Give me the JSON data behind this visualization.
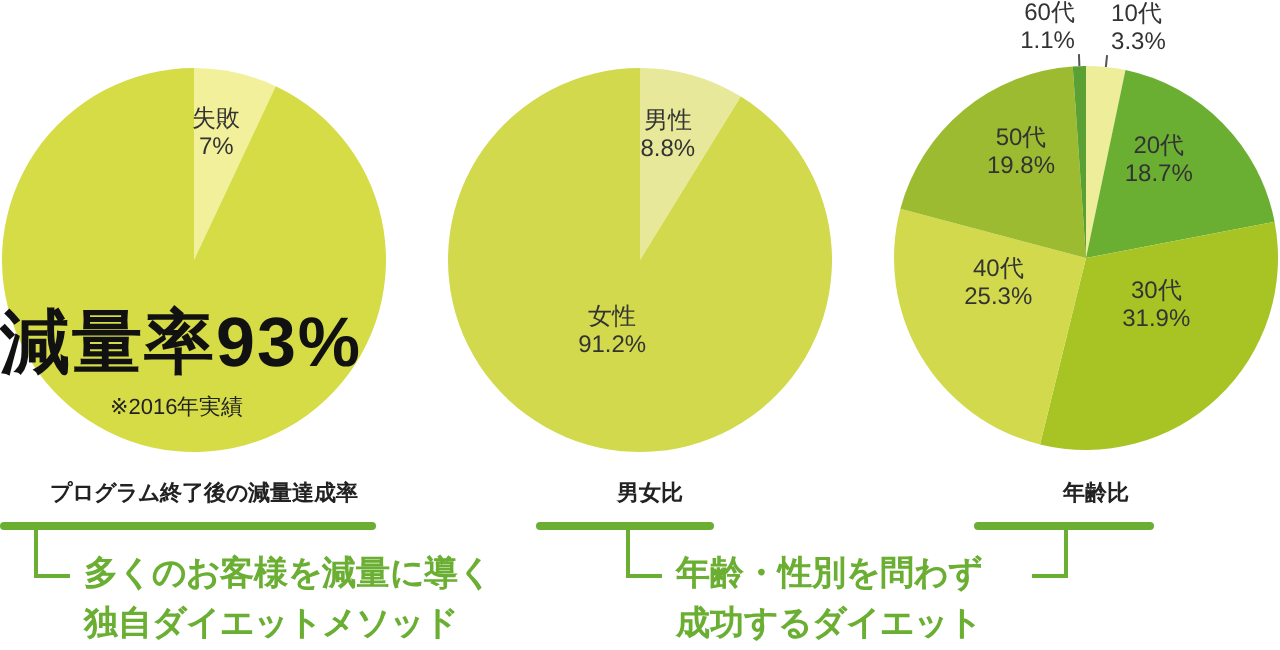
{
  "chart_data": [
    {
      "type": "pie",
      "title": "プログラム終了後の減量達成率",
      "categories": [
        "失敗",
        null
      ],
      "values": [
        7,
        93
      ],
      "value_labels": [
        "7%",
        null
      ],
      "colors": [
        "#f2f09a",
        "#d6dc46"
      ],
      "legend": false,
      "annotations": [
        "減量率93%",
        "※2016年実績",
        "多くのお客様を減量に導く独自ダイエットメソッド"
      ]
    },
    {
      "type": "pie",
      "title": "男女比",
      "categories": [
        "男性",
        "女性"
      ],
      "values": [
        8.8,
        91.2
      ],
      "value_labels": [
        "8.8%",
        "91.2%"
      ],
      "colors": [
        "#e8e89a",
        "#d2d94c"
      ],
      "legend": false,
      "annotations": [
        "年齢・性別を問わず成功するダイエット"
      ]
    },
    {
      "type": "pie",
      "title": "年齢比",
      "categories": [
        "10代",
        "20代",
        "30代",
        "40代",
        "50代",
        "60代"
      ],
      "values": [
        3.3,
        18.7,
        31.9,
        25.3,
        19.8,
        1.1
      ],
      "value_labels": [
        "3.3%",
        "18.7%",
        "31.9%",
        "25.3%",
        "19.8%",
        "1.1%"
      ],
      "colors": [
        "#eeee9a",
        "#6aae32",
        "#a8c424",
        "#d2d94c",
        "#9cbb30",
        "#5aa032"
      ],
      "legend": false
    }
  ]
}
